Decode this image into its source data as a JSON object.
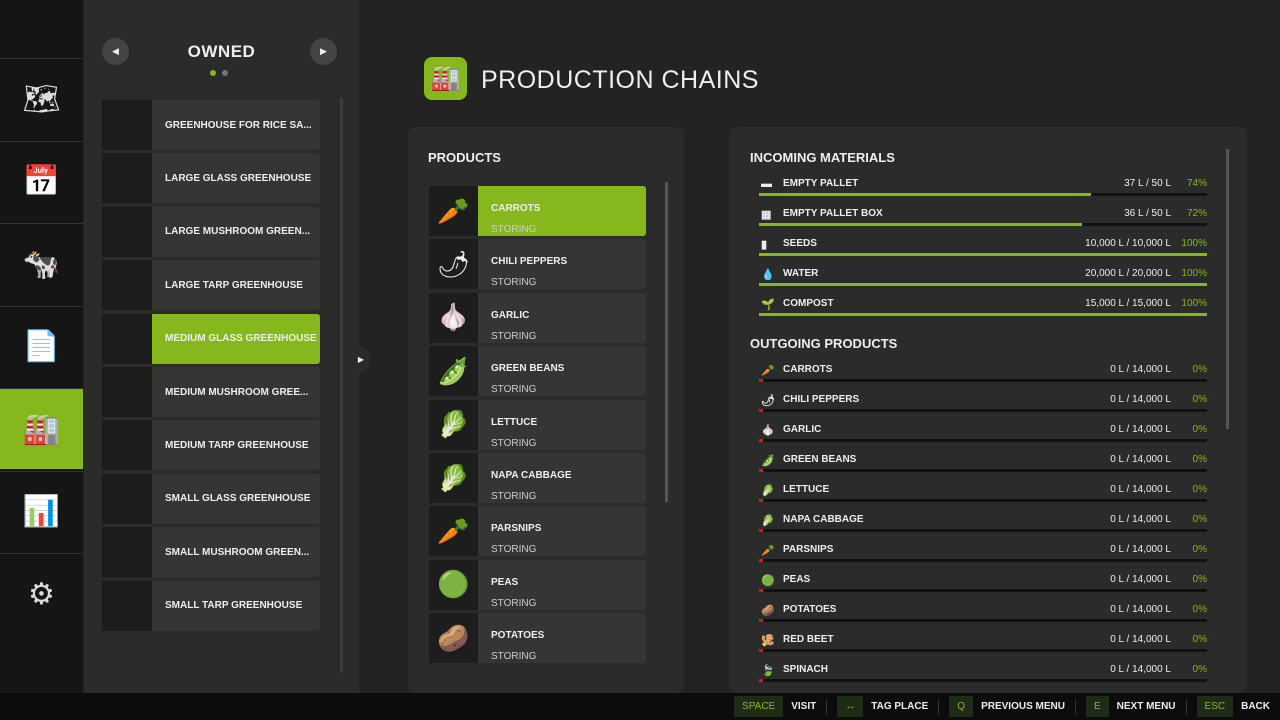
{
  "nav": {
    "items": [
      {
        "icon": "map-icon",
        "glyph": "🗺"
      },
      {
        "icon": "calendar-icon",
        "glyph": "📅"
      },
      {
        "icon": "cow-icon",
        "glyph": "🐄"
      },
      {
        "icon": "contracts-icon",
        "glyph": "📄"
      },
      {
        "icon": "production-icon",
        "glyph": "🏭"
      },
      {
        "icon": "statistics-icon",
        "glyph": "📊"
      },
      {
        "icon": "settings-icon",
        "glyph": "⚙"
      }
    ],
    "active": 4
  },
  "side": {
    "title": "OWNED",
    "page": 1,
    "pages": 2,
    "items": [
      "GREENHOUSE FOR RICE SA...",
      "LARGE GLASS GREENHOUSE",
      "LARGE MUSHROOM GREEN...",
      "LARGE TARP GREENHOUSE",
      "MEDIUM GLASS GREENHOUSE",
      "MEDIUM MUSHROOM GREE...",
      "MEDIUM TARP GREENHOUSE",
      "SMALL GLASS GREENHOUSE",
      "SMALL MUSHROOM GREEN...",
      "SMALL TARP GREENHOUSE"
    ],
    "selected": 4
  },
  "page": {
    "title": "PRODUCTION CHAINS"
  },
  "products": {
    "header": "PRODUCTS",
    "items": [
      {
        "name": "CARROTS",
        "status": "STORING",
        "glyph": "🥕"
      },
      {
        "name": "CHILI PEPPERS",
        "status": "STORING",
        "glyph": "🌶"
      },
      {
        "name": "GARLIC",
        "status": "STORING",
        "glyph": "🧄"
      },
      {
        "name": "GREEN BEANS",
        "status": "STORING",
        "glyph": "🫛"
      },
      {
        "name": "LETTUCE",
        "status": "STORING",
        "glyph": "🥬"
      },
      {
        "name": "NAPA CABBAGE",
        "status": "STORING",
        "glyph": "🥬"
      },
      {
        "name": "PARSNIPS",
        "status": "STORING",
        "glyph": "🥕"
      },
      {
        "name": "PEAS",
        "status": "STORING",
        "glyph": "🟢"
      },
      {
        "name": "POTATOES",
        "status": "STORING",
        "glyph": "🥔"
      }
    ],
    "selected": 0
  },
  "incoming": {
    "header": "INCOMING MATERIALS",
    "items": [
      {
        "name": "EMPTY PALLET",
        "amount": "37 L / 50 L",
        "percent": "74%",
        "fill": 74,
        "glyph": "▬"
      },
      {
        "name": "EMPTY PALLET BOX",
        "amount": "36 L / 50 L",
        "percent": "72%",
        "fill": 72,
        "glyph": "▦"
      },
      {
        "name": "SEEDS",
        "amount": "10,000 L / 10,000 L",
        "percent": "100%",
        "fill": 100,
        "glyph": "▮"
      },
      {
        "name": "WATER",
        "amount": "20,000 L / 20,000 L",
        "percent": "100%",
        "fill": 100,
        "glyph": "💧"
      },
      {
        "name": "COMPOST",
        "amount": "15,000 L / 15,000 L",
        "percent": "100%",
        "fill": 100,
        "glyph": "🌱"
      }
    ]
  },
  "outgoing": {
    "header": "OUTGOING PRODUCTS",
    "items": [
      {
        "name": "CARROTS",
        "amount": "0 L / 14,000 L",
        "percent": "0%",
        "fill": 0,
        "glyph": "🥕"
      },
      {
        "name": "CHILI PEPPERS",
        "amount": "0 L / 14,000 L",
        "percent": "0%",
        "fill": 0,
        "glyph": "🌶"
      },
      {
        "name": "GARLIC",
        "amount": "0 L / 14,000 L",
        "percent": "0%",
        "fill": 0,
        "glyph": "🧄"
      },
      {
        "name": "GREEN BEANS",
        "amount": "0 L / 14,000 L",
        "percent": "0%",
        "fill": 0,
        "glyph": "🫛"
      },
      {
        "name": "LETTUCE",
        "amount": "0 L / 14,000 L",
        "percent": "0%",
        "fill": 0,
        "glyph": "🥬"
      },
      {
        "name": "NAPA CABBAGE",
        "amount": "0 L / 14,000 L",
        "percent": "0%",
        "fill": 0,
        "glyph": "🥬"
      },
      {
        "name": "PARSNIPS",
        "amount": "0 L / 14,000 L",
        "percent": "0%",
        "fill": 0,
        "glyph": "🥕"
      },
      {
        "name": "PEAS",
        "amount": "0 L / 14,000 L",
        "percent": "0%",
        "fill": 0,
        "glyph": "🟢"
      },
      {
        "name": "POTATOES",
        "amount": "0 L / 14,000 L",
        "percent": "0%",
        "fill": 0,
        "glyph": "🥔"
      },
      {
        "name": "RED BEET",
        "amount": "0 L / 14,000 L",
        "percent": "0%",
        "fill": 0,
        "glyph": "🫚"
      },
      {
        "name": "SPINACH",
        "amount": "0 L / 14,000 L",
        "percent": "0%",
        "fill": 0,
        "glyph": "🍃"
      }
    ]
  },
  "footer": [
    {
      "key": "SPACE",
      "label": "VISIT"
    },
    {
      "key": "↔",
      "label": "TAG PLACE"
    },
    {
      "key": "Q",
      "label": "PREVIOUS MENU"
    },
    {
      "key": "E",
      "label": "NEXT MENU"
    },
    {
      "key": "ESC",
      "label": "BACK"
    }
  ],
  "colors": {
    "accent": "#86b81d",
    "empty": "#c82020"
  }
}
